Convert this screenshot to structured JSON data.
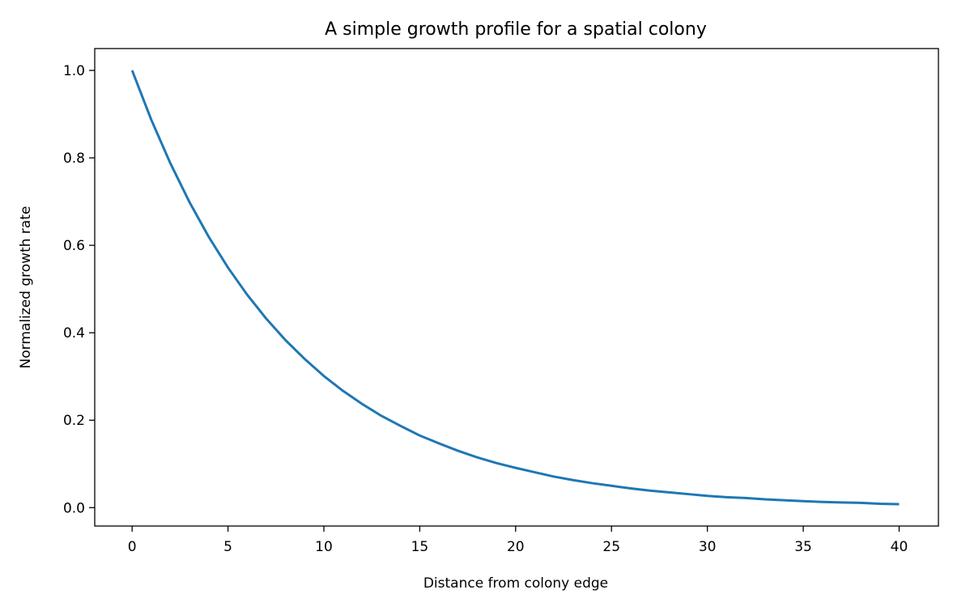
{
  "chart_data": {
    "type": "line",
    "title": "A simple growth profile for a spatial colony",
    "xlabel": "Distance from colony edge",
    "ylabel": "Normalized growth rate",
    "xlim": [
      -1.95,
      42.05
    ],
    "ylim": [
      -0.042,
      1.05
    ],
    "xticks": [
      0,
      5,
      10,
      15,
      20,
      25,
      30,
      35,
      40
    ],
    "yticks": [
      0.0,
      0.2,
      0.4,
      0.6,
      0.8,
      1.0
    ],
    "xtick_labels": [
      "0",
      "5",
      "10",
      "15",
      "20",
      "25",
      "30",
      "35",
      "40"
    ],
    "ytick_labels": [
      "0.0",
      "0.2",
      "0.4",
      "0.6",
      "0.8",
      "1.0"
    ],
    "grid": false,
    "legend": "none",
    "series": [
      {
        "color": "#1f77b4",
        "x": [
          0,
          1,
          2,
          3,
          4,
          5,
          6,
          7,
          8,
          9,
          10,
          11,
          12,
          13,
          14,
          15,
          16,
          17,
          18,
          19,
          20,
          21,
          22,
          23,
          24,
          25,
          26,
          27,
          28,
          29,
          30,
          31,
          32,
          33,
          34,
          35,
          36,
          37,
          38,
          39,
          40
        ],
        "y": [
          1.0,
          0.887,
          0.787,
          0.698,
          0.619,
          0.549,
          0.487,
          0.432,
          0.383,
          0.34,
          0.301,
          0.267,
          0.237,
          0.21,
          0.187,
          0.165,
          0.147,
          0.13,
          0.115,
          0.102,
          0.091,
          0.081,
          0.071,
          0.063,
          0.056,
          0.05,
          0.044,
          0.039,
          0.035,
          0.031,
          0.027,
          0.024,
          0.022,
          0.019,
          0.017,
          0.015,
          0.013,
          0.012,
          0.011,
          0.009,
          0.008
        ]
      }
    ]
  },
  "colors": {
    "line": "#1f77b4",
    "axes": "#000000",
    "background": "#ffffff"
  }
}
